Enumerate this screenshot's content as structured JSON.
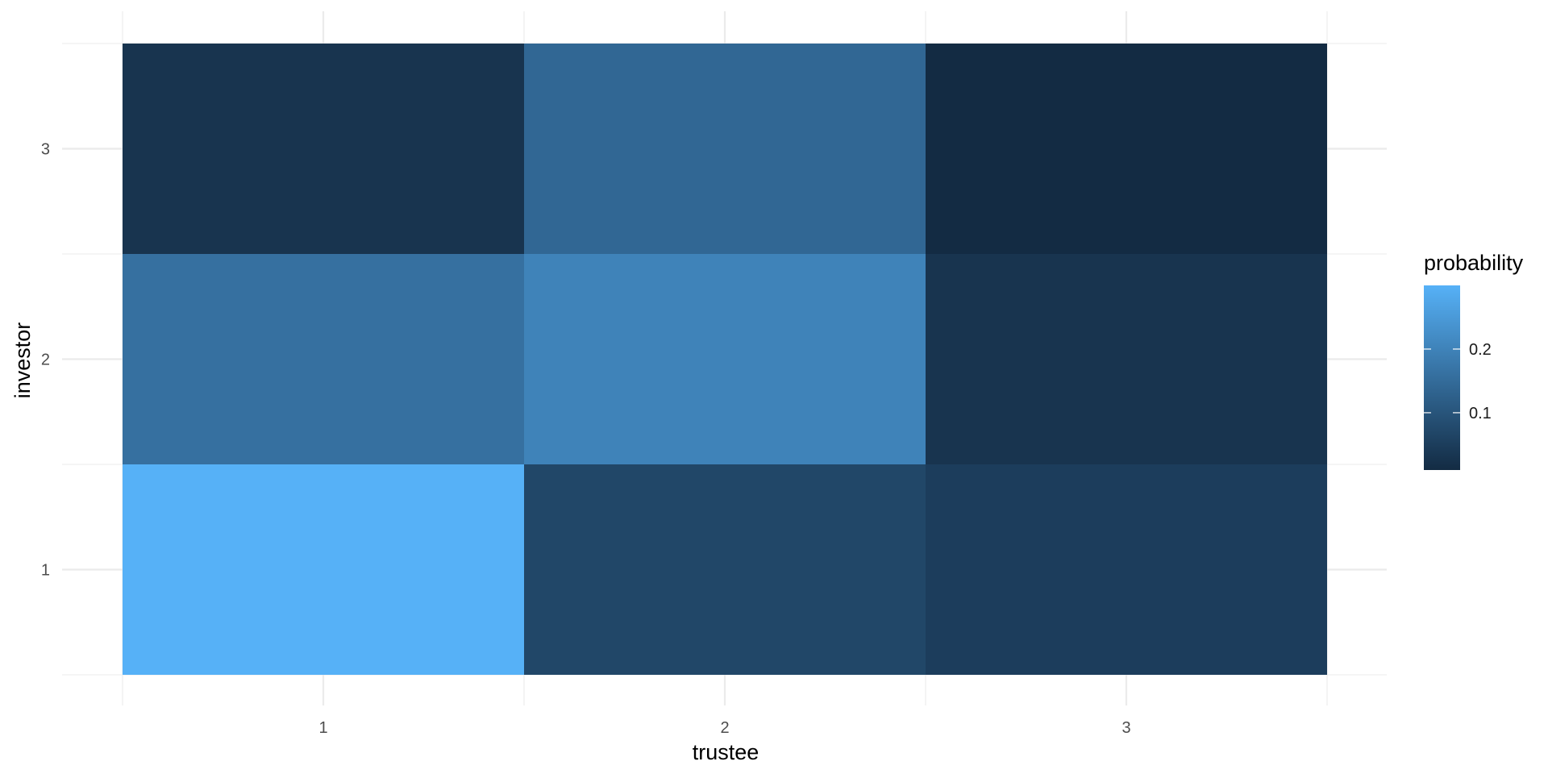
{
  "chart_data": {
    "type": "heatmap",
    "title": "",
    "xlabel": "trustee",
    "ylabel": "investor",
    "x_categories": [
      "1",
      "2",
      "3"
    ],
    "y_categories": [
      "1",
      "2",
      "3"
    ],
    "cells": [
      {
        "x": "1",
        "y": "1",
        "value": 0.3
      },
      {
        "x": "2",
        "y": "1",
        "value": 0.07
      },
      {
        "x": "3",
        "y": "1",
        "value": 0.05
      },
      {
        "x": "1",
        "y": "2",
        "value": 0.16
      },
      {
        "x": "2",
        "y": "2",
        "value": 0.2
      },
      {
        "x": "3",
        "y": "2",
        "value": 0.03
      },
      {
        "x": "1",
        "y": "3",
        "value": 0.03
      },
      {
        "x": "2",
        "y": "3",
        "value": 0.14
      },
      {
        "x": "3",
        "y": "3",
        "value": 0.01
      }
    ],
    "color_scale": {
      "low_color": "#132B43",
      "high_color": "#56B1F7",
      "min": 0.01,
      "max": 0.3
    },
    "legend": {
      "title": "probability",
      "position": "right",
      "breaks": [
        0.1,
        0.2
      ],
      "labels": [
        "0.1",
        "0.2"
      ]
    },
    "grid": true
  }
}
